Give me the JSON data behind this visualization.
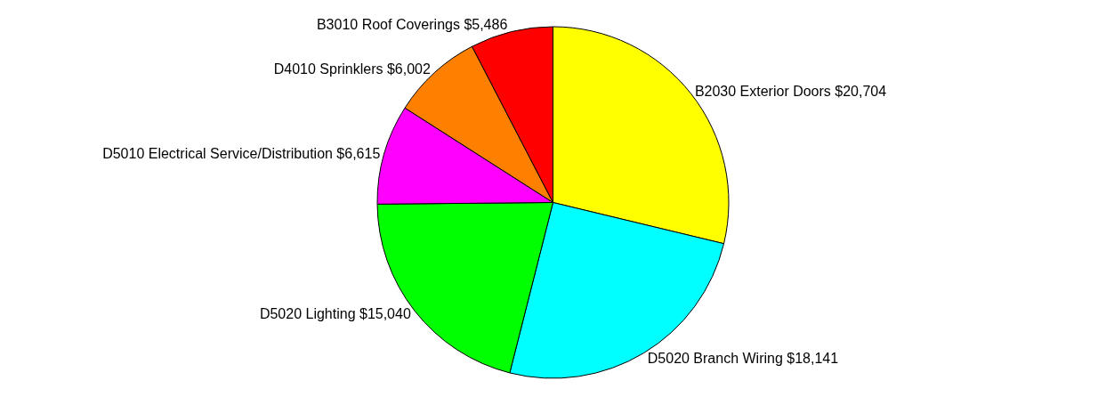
{
  "chart_data": {
    "type": "pie",
    "categories": [
      "B2030 Exterior Doors",
      "D5020 Branch Wiring",
      "D5020 Lighting",
      "D5010 Electrical Service/Distribution",
      "D4010 Sprinklers",
      "B3010 Roof Coverings"
    ],
    "values": [
      20704,
      18141,
      15040,
      6615,
      6002,
      5486
    ],
    "value_labels": [
      "$20,704",
      "$18,141",
      "$15,040",
      "$6,615",
      "$6,002",
      "$5,486"
    ],
    "colors": [
      "#ffff00",
      "#00ffff",
      "#00ff00",
      "#ff00ff",
      "#ff8000",
      "#ff0000"
    ],
    "legend": false
  }
}
